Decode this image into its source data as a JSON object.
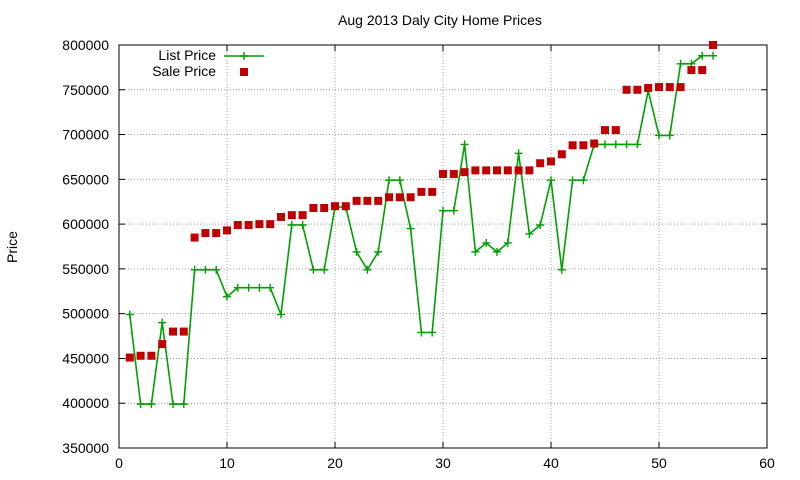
{
  "chart_data": {
    "type": "line",
    "title": "Aug 2013 Daly City Home Prices",
    "xlabel": "",
    "ylabel": "Price",
    "xlim": [
      0,
      60
    ],
    "ylim": [
      350000,
      800000
    ],
    "xticks": [
      0,
      10,
      20,
      30,
      40,
      50,
      60
    ],
    "yticks": [
      350000,
      400000,
      450000,
      500000,
      550000,
      600000,
      650000,
      700000,
      750000,
      800000
    ],
    "grid": true,
    "legend_position": "top-left",
    "series": [
      {
        "name": "List Price",
        "style": "line-plus",
        "color": "#00a000",
        "x": [
          1,
          2,
          3,
          4,
          5,
          6,
          7,
          8,
          9,
          10,
          11,
          12,
          13,
          14,
          15,
          16,
          17,
          18,
          19,
          20,
          21,
          22,
          23,
          24,
          25,
          26,
          27,
          28,
          29,
          30,
          31,
          32,
          33,
          34,
          35,
          36,
          37,
          38,
          39,
          40,
          41,
          42,
          43,
          44,
          45,
          46,
          47,
          48,
          49,
          50,
          51,
          52,
          53,
          54,
          55
        ],
        "y": [
          499000,
          399000,
          399000,
          490000,
          399000,
          399000,
          549000,
          549000,
          549000,
          519000,
          529000,
          529000,
          529000,
          529000,
          499000,
          599000,
          599000,
          549000,
          549000,
          619000,
          619000,
          569000,
          549000,
          569000,
          649000,
          649000,
          595000,
          479000,
          479000,
          615000,
          615000,
          689000,
          569000,
          579000,
          569000,
          579000,
          679000,
          589000,
          599000,
          649000,
          549000,
          649000,
          649000,
          689000,
          689000,
          689000,
          689000,
          689000,
          749000,
          699000,
          699000,
          779000,
          779000,
          788000,
          788000
        ]
      },
      {
        "name": "Sale Price",
        "style": "points-square",
        "color": "#c00000",
        "x": [
          1,
          2,
          3,
          4,
          5,
          6,
          7,
          8,
          9,
          10,
          11,
          12,
          13,
          14,
          15,
          16,
          17,
          18,
          19,
          20,
          21,
          22,
          23,
          24,
          25,
          26,
          27,
          28,
          29,
          30,
          31,
          32,
          33,
          34,
          35,
          36,
          37,
          38,
          39,
          40,
          41,
          42,
          43,
          44,
          45,
          46,
          47,
          48,
          49,
          50,
          51,
          52,
          53,
          54,
          55
        ],
        "y": [
          451000,
          453000,
          453000,
          466000,
          480000,
          480000,
          585000,
          590000,
          590000,
          593000,
          599000,
          599000,
          600000,
          600000,
          608000,
          610000,
          610000,
          618000,
          618000,
          620000,
          620000,
          626000,
          626000,
          626000,
          630000,
          630000,
          630000,
          636000,
          636000,
          656000,
          656000,
          658000,
          660000,
          660000,
          660000,
          660000,
          660000,
          660000,
          668000,
          670000,
          678000,
          688000,
          688000,
          690000,
          705000,
          705000,
          750000,
          750000,
          752000,
          753000,
          753000,
          753000,
          772000,
          772000,
          800000
        ]
      }
    ]
  }
}
